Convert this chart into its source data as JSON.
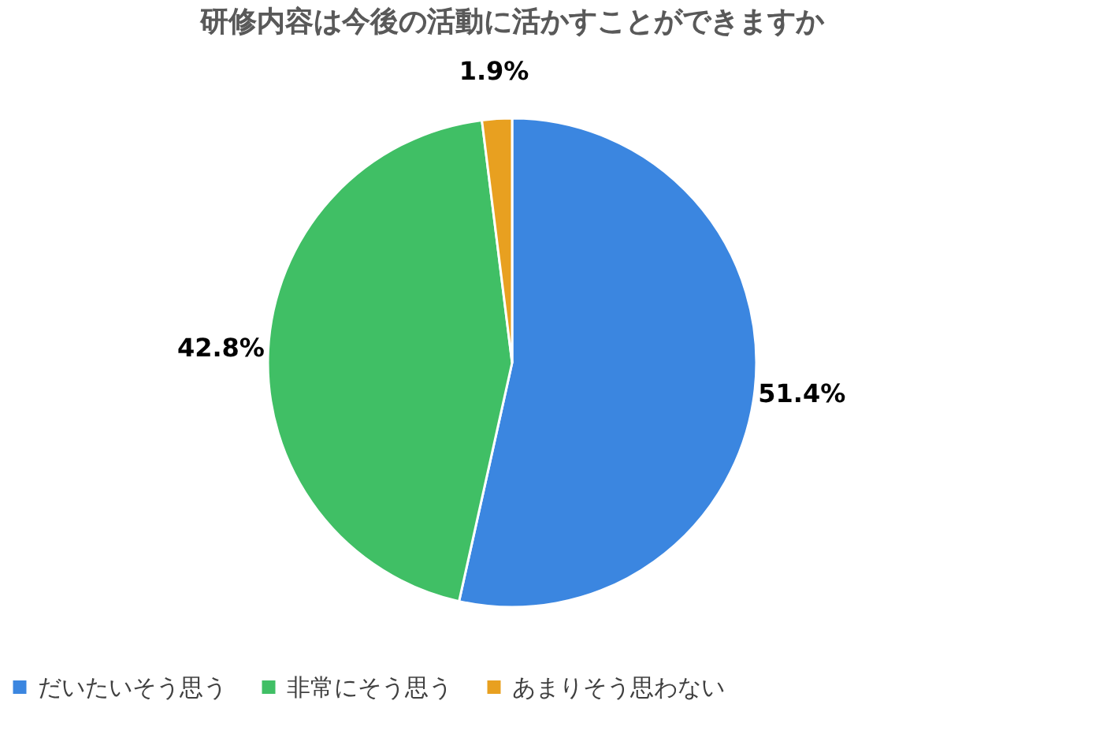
{
  "chart_data": {
    "type": "pie",
    "title": "研修内容は今後の活動に活かすことができますか",
    "categories": [
      "だいたいそう思う",
      "非常にそう思う",
      "あまりそう思わない"
    ],
    "values": [
      51.4,
      42.8,
      1.9
    ],
    "value_labels": [
      "51.4%",
      "42.8%",
      "1.9%"
    ],
    "colors": [
      "#3b86e0",
      "#40bf65",
      "#e8a020"
    ],
    "legend": "bottom"
  }
}
